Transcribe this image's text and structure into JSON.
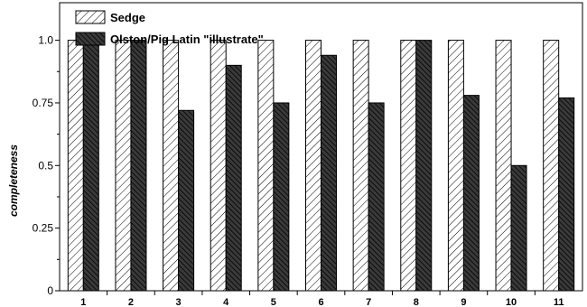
{
  "chart_data": {
    "type": "bar",
    "title": "",
    "xlabel": "",
    "ylabel": "completeness",
    "ylim": [
      0,
      1.15
    ],
    "yticks": [
      "0",
      "0.25",
      "0.5",
      "0.75",
      "1.0"
    ],
    "categories": [
      "1",
      "2",
      "3",
      "4",
      "5",
      "6",
      "7",
      "8",
      "9",
      "10",
      "11"
    ],
    "series": [
      {
        "name": "Sedge",
        "values": [
          1.0,
          1.0,
          1.0,
          1.0,
          1.0,
          1.0,
          1.0,
          1.0,
          1.0,
          1.0,
          1.0
        ],
        "pattern": "light-diagonal-hatch"
      },
      {
        "name": "Olston/Pig Latin \"illustrate\"",
        "values": [
          1.0,
          1.0,
          0.72,
          0.9,
          0.75,
          0.94,
          0.75,
          1.0,
          0.78,
          0.5,
          0.77
        ],
        "pattern": "dark-diagonal-hatch"
      }
    ],
    "legend_position": "top-left",
    "grid": false,
    "colors": {
      "ink": "#000000",
      "light_fill": "#ffffff",
      "dark_fill": "#404040"
    }
  }
}
